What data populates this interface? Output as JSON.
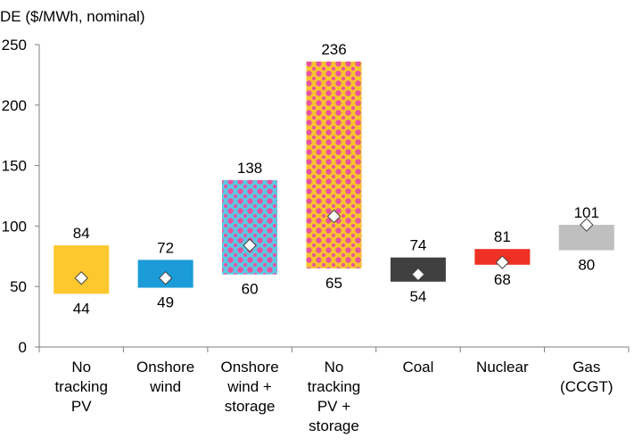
{
  "chart_data": {
    "type": "bar",
    "subtype": "floating-range",
    "ylabel": "DE ($/MWh, nominal)",
    "ylim": [
      0,
      250
    ],
    "yticks": [
      0,
      50,
      100,
      150,
      200,
      250
    ],
    "grid": false,
    "legend": "none",
    "categories": [
      [
        "No",
        "tracking",
        "PV"
      ],
      [
        "Onshore",
        "wind"
      ],
      [
        "Onshore",
        "wind +",
        "storage"
      ],
      [
        "No",
        "tracking",
        "PV +",
        "storage"
      ],
      [
        "Coal"
      ],
      [
        "Nuclear"
      ],
      [
        "Gas",
        "(CCGT)"
      ]
    ],
    "low": [
      44,
      49,
      60,
      65,
      54,
      68,
      80
    ],
    "high": [
      84,
      72,
      138,
      236,
      74,
      81,
      101
    ],
    "mid": [
      57,
      57,
      84,
      108,
      60,
      70,
      101
    ],
    "colors": [
      "#FDC72E",
      "#1B9BD7",
      "pattern-pink-cyan",
      "pattern-pink-yellow",
      "#404040",
      "#EE3124",
      "#BFBFBF"
    ],
    "pattern_colors": {
      "pink": "#E8539E",
      "cyan": "#5BC8E2",
      "yellow": "#F8C42E"
    }
  }
}
